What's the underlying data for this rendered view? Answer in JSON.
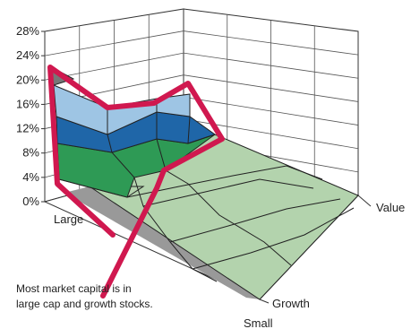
{
  "chart_data": {
    "type": "surface3d",
    "title": "",
    "z_axis": {
      "tick_labels": [
        "0%",
        "4%",
        "8%",
        "12%",
        "16%",
        "20%",
        "24%",
        "28%"
      ],
      "range": [
        0,
        28
      ],
      "unit": "%"
    },
    "size_axis": {
      "labels": [
        "Large",
        "Small"
      ]
    },
    "style_axis": {
      "labels": [
        "Growth",
        "Value"
      ]
    },
    "grid": true,
    "surface_bands": [
      {
        "range": [
          0,
          4
        ],
        "color": "#b3d3ad"
      },
      {
        "range": [
          4,
          8
        ],
        "color": "#2e9a55"
      },
      {
        "range": [
          8,
          12
        ],
        "color": "#1f66a8"
      },
      {
        "range": [
          12,
          16
        ],
        "color": "#9ec5e4"
      },
      {
        "range": [
          16,
          24
        ],
        "color": "#777777"
      }
    ],
    "large_cap_edge": {
      "description_from": "Large",
      "values": [
        23,
        16,
        17,
        20
      ]
    },
    "annotation": {
      "lines": [
        "Most market capital is in",
        "large cap and growth stocks."
      ],
      "color": "#d0184f"
    }
  }
}
